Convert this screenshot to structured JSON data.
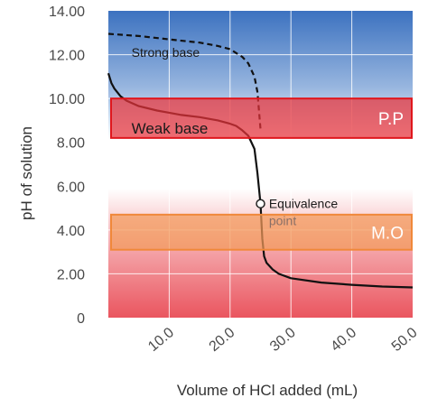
{
  "chart_data": {
    "type": "line",
    "xlabel": "Volume of HCl added (mL)",
    "ylabel": "pH of solution",
    "xlim": [
      0,
      50
    ],
    "ylim": [
      0,
      14
    ],
    "x_ticks": [
      "10.0",
      "20.0",
      "30.0",
      "40.0",
      "50.0"
    ],
    "y_ticks": [
      {
        "v": 0,
        "label": "0"
      },
      {
        "v": 2,
        "label": "2.00"
      },
      {
        "v": 4,
        "label": "4.00"
      },
      {
        "v": 6,
        "label": "6.00"
      },
      {
        "v": 8,
        "label": "8.00"
      },
      {
        "v": 10,
        "label": "10.00"
      },
      {
        "v": 12,
        "label": "12.00"
      },
      {
        "v": 14,
        "label": "14.00"
      }
    ],
    "grid": true,
    "series": [
      {
        "name": "Strong base",
        "style": "dashed",
        "color": "#111111",
        "x": [
          0,
          5,
          10,
          15,
          18,
          20,
          22,
          23,
          24,
          24.5,
          25
        ],
        "y": [
          12.95,
          12.85,
          12.7,
          12.55,
          12.4,
          12.25,
          11.9,
          11.6,
          11.0,
          10.3,
          8.6
        ]
      },
      {
        "name": "Weak base",
        "style": "solid",
        "color": "#111111",
        "x": [
          0,
          0.5,
          1,
          2,
          3,
          5,
          8,
          10,
          12,
          15,
          18,
          20,
          21,
          22,
          23,
          24,
          24.5,
          25,
          25.3,
          25.6,
          26,
          27,
          28,
          30,
          35,
          40,
          45,
          50
        ],
        "y": [
          11.15,
          10.7,
          10.45,
          10.1,
          9.9,
          9.65,
          9.45,
          9.35,
          9.25,
          9.15,
          9.0,
          8.85,
          8.75,
          8.55,
          8.3,
          7.7,
          6.6,
          5.2,
          3.6,
          2.8,
          2.5,
          2.2,
          2.0,
          1.8,
          1.6,
          1.5,
          1.42,
          1.38
        ]
      }
    ],
    "curve_labels": {
      "strong": {
        "text": "Strong base",
        "x": 3.8,
        "y": 11.9
      },
      "weak": {
        "text": "Weak base",
        "x": 3.8,
        "y": 8.4
      },
      "equiv": {
        "line1": "Equivalence",
        "line2": "point",
        "x": 25.2,
        "y": 5.2
      }
    },
    "indicator_bands": [
      {
        "label": "P.P",
        "ymin": 8.2,
        "ymax": 10.0,
        "fill": "#e8333a",
        "stroke": "#e0161c"
      },
      {
        "label": "M.O",
        "ymin": 3.1,
        "ymax": 4.7,
        "fill": "#f39a5a",
        "stroke": "#f0883a"
      }
    ],
    "equivalence_point": {
      "x": 25,
      "y": 5.2
    },
    "colors": {
      "background_top": "#3f78c4",
      "background_mid": "#ffffff",
      "background_bottom": "#ec5a63"
    }
  }
}
